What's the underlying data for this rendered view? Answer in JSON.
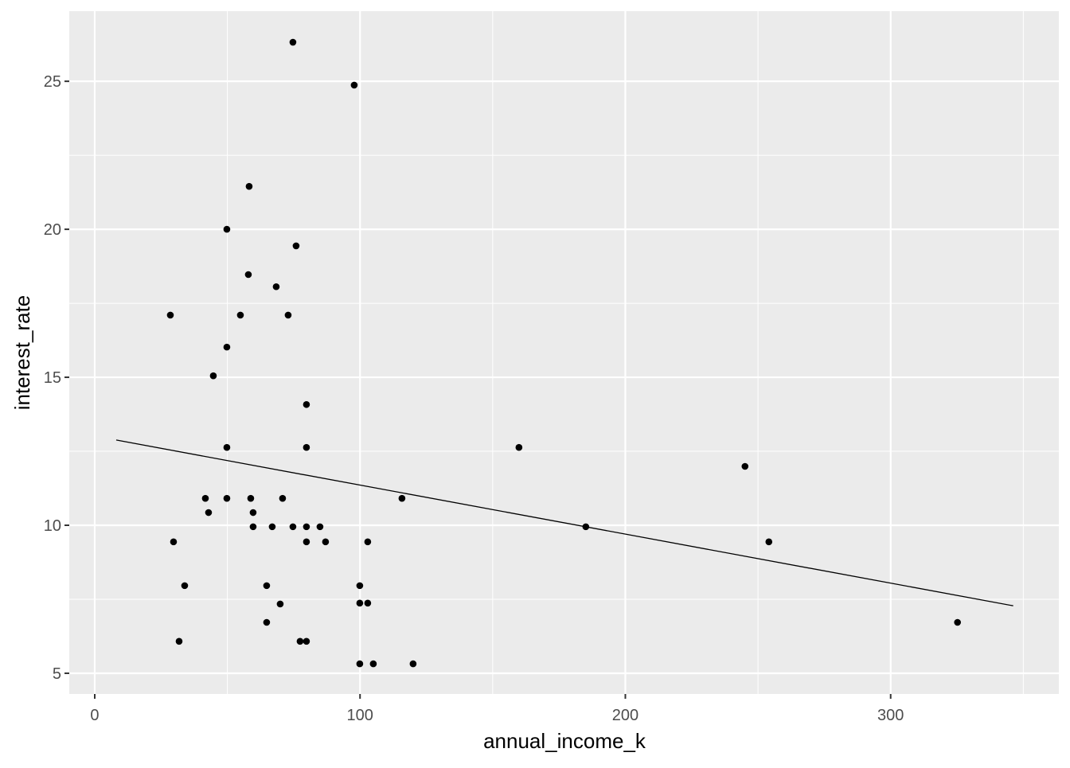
{
  "chart_data": {
    "type": "scatter",
    "title": "",
    "xlabel": "annual_income_k",
    "ylabel": "interest_rate",
    "xlim": [
      -9.6,
      363.4
    ],
    "ylim": [
      4.3,
      27.37
    ],
    "xticks": [
      0,
      100,
      200,
      300
    ],
    "yticks": [
      5,
      10,
      15,
      20,
      25
    ],
    "xminor": [
      50,
      150,
      250,
      350
    ],
    "yminor": [
      7.5,
      12.5,
      17.5,
      22.5
    ],
    "grid": true,
    "points": [
      [
        74.7,
        26.32
      ],
      [
        97.8,
        24.87
      ],
      [
        58.2,
        21.45
      ],
      [
        49.8,
        20.0
      ],
      [
        75.9,
        19.44
      ],
      [
        57.9,
        18.47
      ],
      [
        68.4,
        18.06
      ],
      [
        28.5,
        17.1
      ],
      [
        54.9,
        17.1
      ],
      [
        72.9,
        17.1
      ],
      [
        49.8,
        16.02
      ],
      [
        44.7,
        15.05
      ],
      [
        79.8,
        14.08
      ],
      [
        49.8,
        12.63
      ],
      [
        79.8,
        12.63
      ],
      [
        159.9,
        12.63
      ],
      [
        245.1,
        11.99
      ],
      [
        41.7,
        10.91
      ],
      [
        49.8,
        10.91
      ],
      [
        58.8,
        10.91
      ],
      [
        70.8,
        10.91
      ],
      [
        115.8,
        10.91
      ],
      [
        42.9,
        10.43
      ],
      [
        59.7,
        10.43
      ],
      [
        59.7,
        9.95
      ],
      [
        66.9,
        9.95
      ],
      [
        74.7,
        9.95
      ],
      [
        79.8,
        9.95
      ],
      [
        84.9,
        9.95
      ],
      [
        185.1,
        9.95
      ],
      [
        29.7,
        9.44
      ],
      [
        79.8,
        9.44
      ],
      [
        87.0,
        9.44
      ],
      [
        102.9,
        9.44
      ],
      [
        254.1,
        9.44
      ],
      [
        33.9,
        7.96
      ],
      [
        64.8,
        7.96
      ],
      [
        99.9,
        7.96
      ],
      [
        69.9,
        7.34
      ],
      [
        99.9,
        7.37
      ],
      [
        102.9,
        7.37
      ],
      [
        64.8,
        6.72
      ],
      [
        325.2,
        6.72
      ],
      [
        31.8,
        6.08
      ],
      [
        77.4,
        6.08
      ],
      [
        79.8,
        6.08
      ],
      [
        99.9,
        5.32
      ],
      [
        105.0,
        5.32
      ],
      [
        120.0,
        5.32
      ]
    ],
    "trend_line": {
      "type": "linear",
      "x": [
        8.1,
        346.2
      ],
      "y": [
        12.88,
        7.28
      ]
    },
    "colors": {
      "panel": "#EBEBEB",
      "grid": "#FFFFFF",
      "point": "#000000",
      "line": "#000000",
      "tick_text": "#4D4D4D"
    }
  }
}
